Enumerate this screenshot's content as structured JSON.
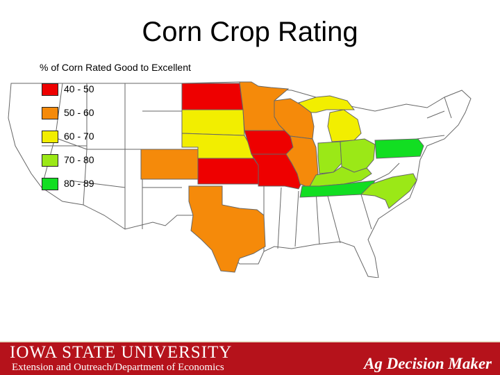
{
  "title": "Corn Crop Rating",
  "subtitle": "% of Corn Rated Good to Excellent",
  "legend": {
    "items": [
      {
        "label": "40 - 50",
        "color": "#ee0000"
      },
      {
        "label": "50 - 60",
        "color": "#f58a0a"
      },
      {
        "label": "60 - 70",
        "color": "#f2ee00"
      },
      {
        "label": "70 - 80",
        "color": "#9be817"
      },
      {
        "label": "80 - 89",
        "color": "#12de22"
      }
    ]
  },
  "map": {
    "background_color": "#ffffff",
    "border_color": "#666666",
    "rated_states": [
      {
        "state": "North Dakota",
        "bin": "40 - 50"
      },
      {
        "state": "Iowa",
        "bin": "40 - 50"
      },
      {
        "state": "Kansas",
        "bin": "40 - 50"
      },
      {
        "state": "Missouri",
        "bin": "40 - 50"
      },
      {
        "state": "Minnesota",
        "bin": "50 - 60"
      },
      {
        "state": "Wisconsin",
        "bin": "50 - 60"
      },
      {
        "state": "Illinois",
        "bin": "50 - 60"
      },
      {
        "state": "Colorado",
        "bin": "50 - 60"
      },
      {
        "state": "Texas",
        "bin": "50 - 60"
      },
      {
        "state": "South Dakota",
        "bin": "60 - 70"
      },
      {
        "state": "Nebraska",
        "bin": "60 - 70"
      },
      {
        "state": "Michigan",
        "bin": "60 - 70"
      },
      {
        "state": "Indiana",
        "bin": "70 - 80"
      },
      {
        "state": "Ohio",
        "bin": "70 - 80"
      },
      {
        "state": "Kentucky",
        "bin": "70 - 80"
      },
      {
        "state": "North Carolina",
        "bin": "70 - 80"
      },
      {
        "state": "Pennsylvania",
        "bin": "80 - 89"
      },
      {
        "state": "Tennessee",
        "bin": "80 - 89"
      }
    ]
  },
  "footer": {
    "university": "IOWA STATE UNIVERSITY",
    "department": "Extension and Outreach/Department of Economics",
    "brand": "Ag Decision Maker",
    "bg_color": "#b5121b"
  }
}
